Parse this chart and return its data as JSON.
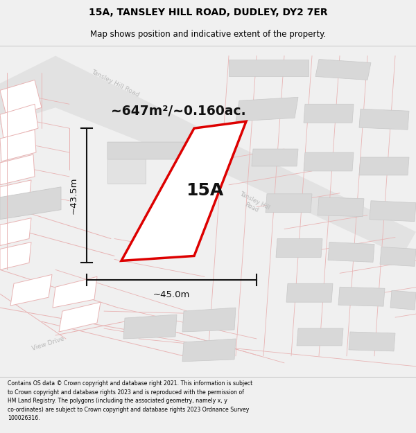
{
  "title_line1": "15A, TANSLEY HILL ROAD, DUDLEY, DY2 7ER",
  "title_line2": "Map shows position and indicative extent of the property.",
  "area_text": "~647m²/~0.160ac.",
  "label_15a": "15A",
  "dim_height": "~43.5m",
  "dim_width": "~45.0m",
  "footer_text": "Contains OS data © Crown copyright and database right 2021. This information is subject to Crown copyright and database rights 2023 and is reproduced with the permission of HM Land Registry. The polygons (including the associated geometry, namely x, y co-ordinates) are subject to Crown copyright and database rights 2023 Ordnance Survey 100026316.",
  "bg_color": "#f0f0f0",
  "map_bg": "#ffffff",
  "road_fill": "#e2e2e2",
  "building_fill": "#d8d8d8",
  "plot_line_color": "#e8b4b4",
  "building_edge_color": "#c8c8c8",
  "property_color": "#dd0000",
  "dim_line_color": "#111111",
  "title_color": "#000000",
  "road_text_color": "#b8b8b8",
  "footer_color": "#000000"
}
